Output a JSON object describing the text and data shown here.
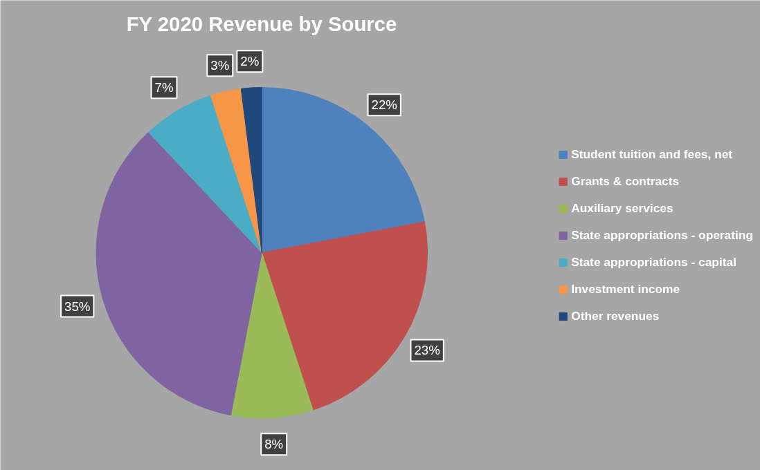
{
  "chart_data": {
    "type": "pie",
    "title": "FY 2020 Revenue by Source",
    "categories": [
      "Student tuition and fees, net",
      "Grants & contracts",
      "Auxiliary services",
      "State appropriations - operating",
      "State appropriations - capital",
      "Investment income",
      "Other revenues"
    ],
    "values": [
      22,
      23,
      8,
      35,
      7,
      3,
      2
    ],
    "colors": [
      "#4f81bd",
      "#c0504d",
      "#9bbb59",
      "#8064a2",
      "#4bacc6",
      "#f79646",
      "#1f497d"
    ],
    "value_labels": [
      "22%",
      "23%",
      "8%",
      "35%",
      "7%",
      "3%",
      "2%"
    ],
    "legend": "right"
  }
}
